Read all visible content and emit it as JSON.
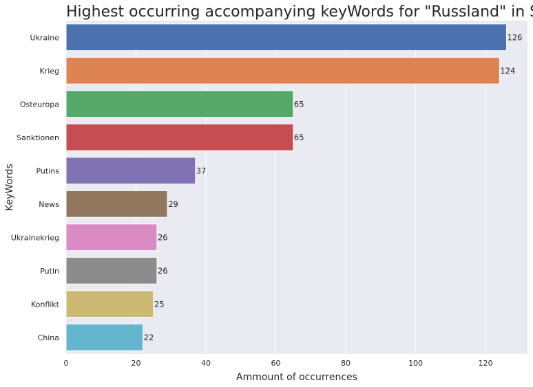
{
  "chart_data": {
    "type": "bar",
    "orientation": "horizontal",
    "title": "Highest occurring accompanying keyWords for \"Russland\" in Spiegel",
    "xlabel": "Ammount of occurrences",
    "ylabel": "KeyWords",
    "xlim": [
      0,
      132
    ],
    "xticks": [
      0,
      20,
      40,
      60,
      80,
      100,
      120
    ],
    "grid": true,
    "categories": [
      "Ukraine",
      "Krieg",
      "Osteuropa",
      "Sanktionen",
      "Putins",
      "News",
      "Ukrainekrieg",
      "Putin",
      "Konflikt",
      "China"
    ],
    "values": [
      126,
      124,
      65,
      65,
      37,
      29,
      26,
      26,
      25,
      22
    ],
    "colors": [
      "#4c72b0",
      "#dd8452",
      "#55a868",
      "#c44e52",
      "#8172b3",
      "#937860",
      "#da8bc3",
      "#8c8c8c",
      "#ccb974",
      "#64b5cd"
    ],
    "background": "#eaeaf2",
    "gridColor": "#ffffff"
  }
}
